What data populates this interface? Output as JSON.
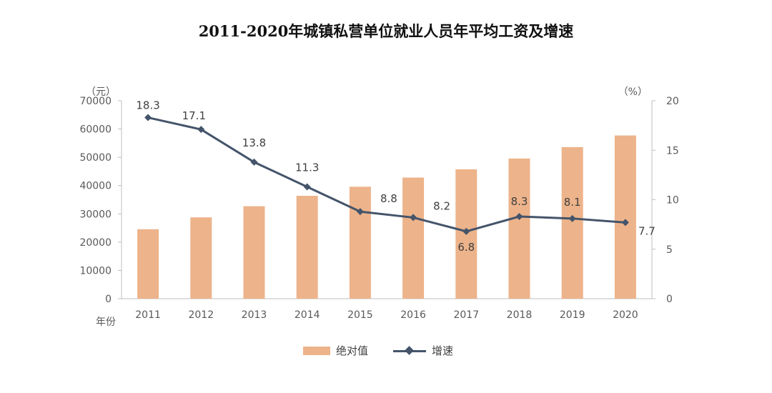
{
  "title": "2011-2020年城镇私营单位就业人员年平均工资及增速",
  "chart_data": {
    "type": "bar",
    "categories": [
      "2011",
      "2012",
      "2013",
      "2014",
      "2015",
      "2016",
      "2017",
      "2018",
      "2019",
      "2020"
    ],
    "series": [
      {
        "name": "绝对值",
        "type": "bar",
        "axis": "left",
        "color": "#EDB38A",
        "values": [
          24556,
          28752,
          32706,
          36390,
          39589,
          42833,
          45761,
          49575,
          53604,
          57727
        ]
      },
      {
        "name": "增速",
        "type": "line",
        "axis": "right",
        "color": "#44546A",
        "values": [
          18.3,
          17.1,
          13.8,
          11.3,
          8.8,
          8.2,
          6.8,
          8.3,
          8.1,
          7.7
        ],
        "labels": [
          "18.3",
          "17.1",
          "13.8",
          "11.3",
          "8.8",
          "8.2",
          "6.8",
          "8.3",
          "8.1",
          "7.7"
        ]
      }
    ],
    "y_left": {
      "unit": "（元）",
      "range": [
        0,
        70000
      ],
      "ticks": [
        "0",
        "10000",
        "20000",
        "30000",
        "40000",
        "50000",
        "60000",
        "70000"
      ]
    },
    "y_right": {
      "unit": "（%）",
      "range": [
        0,
        20
      ],
      "ticks": [
        "0",
        "5",
        "10",
        "15",
        "20"
      ]
    },
    "xlabel": "年份",
    "grid": false,
    "legend": "bottom-center"
  }
}
